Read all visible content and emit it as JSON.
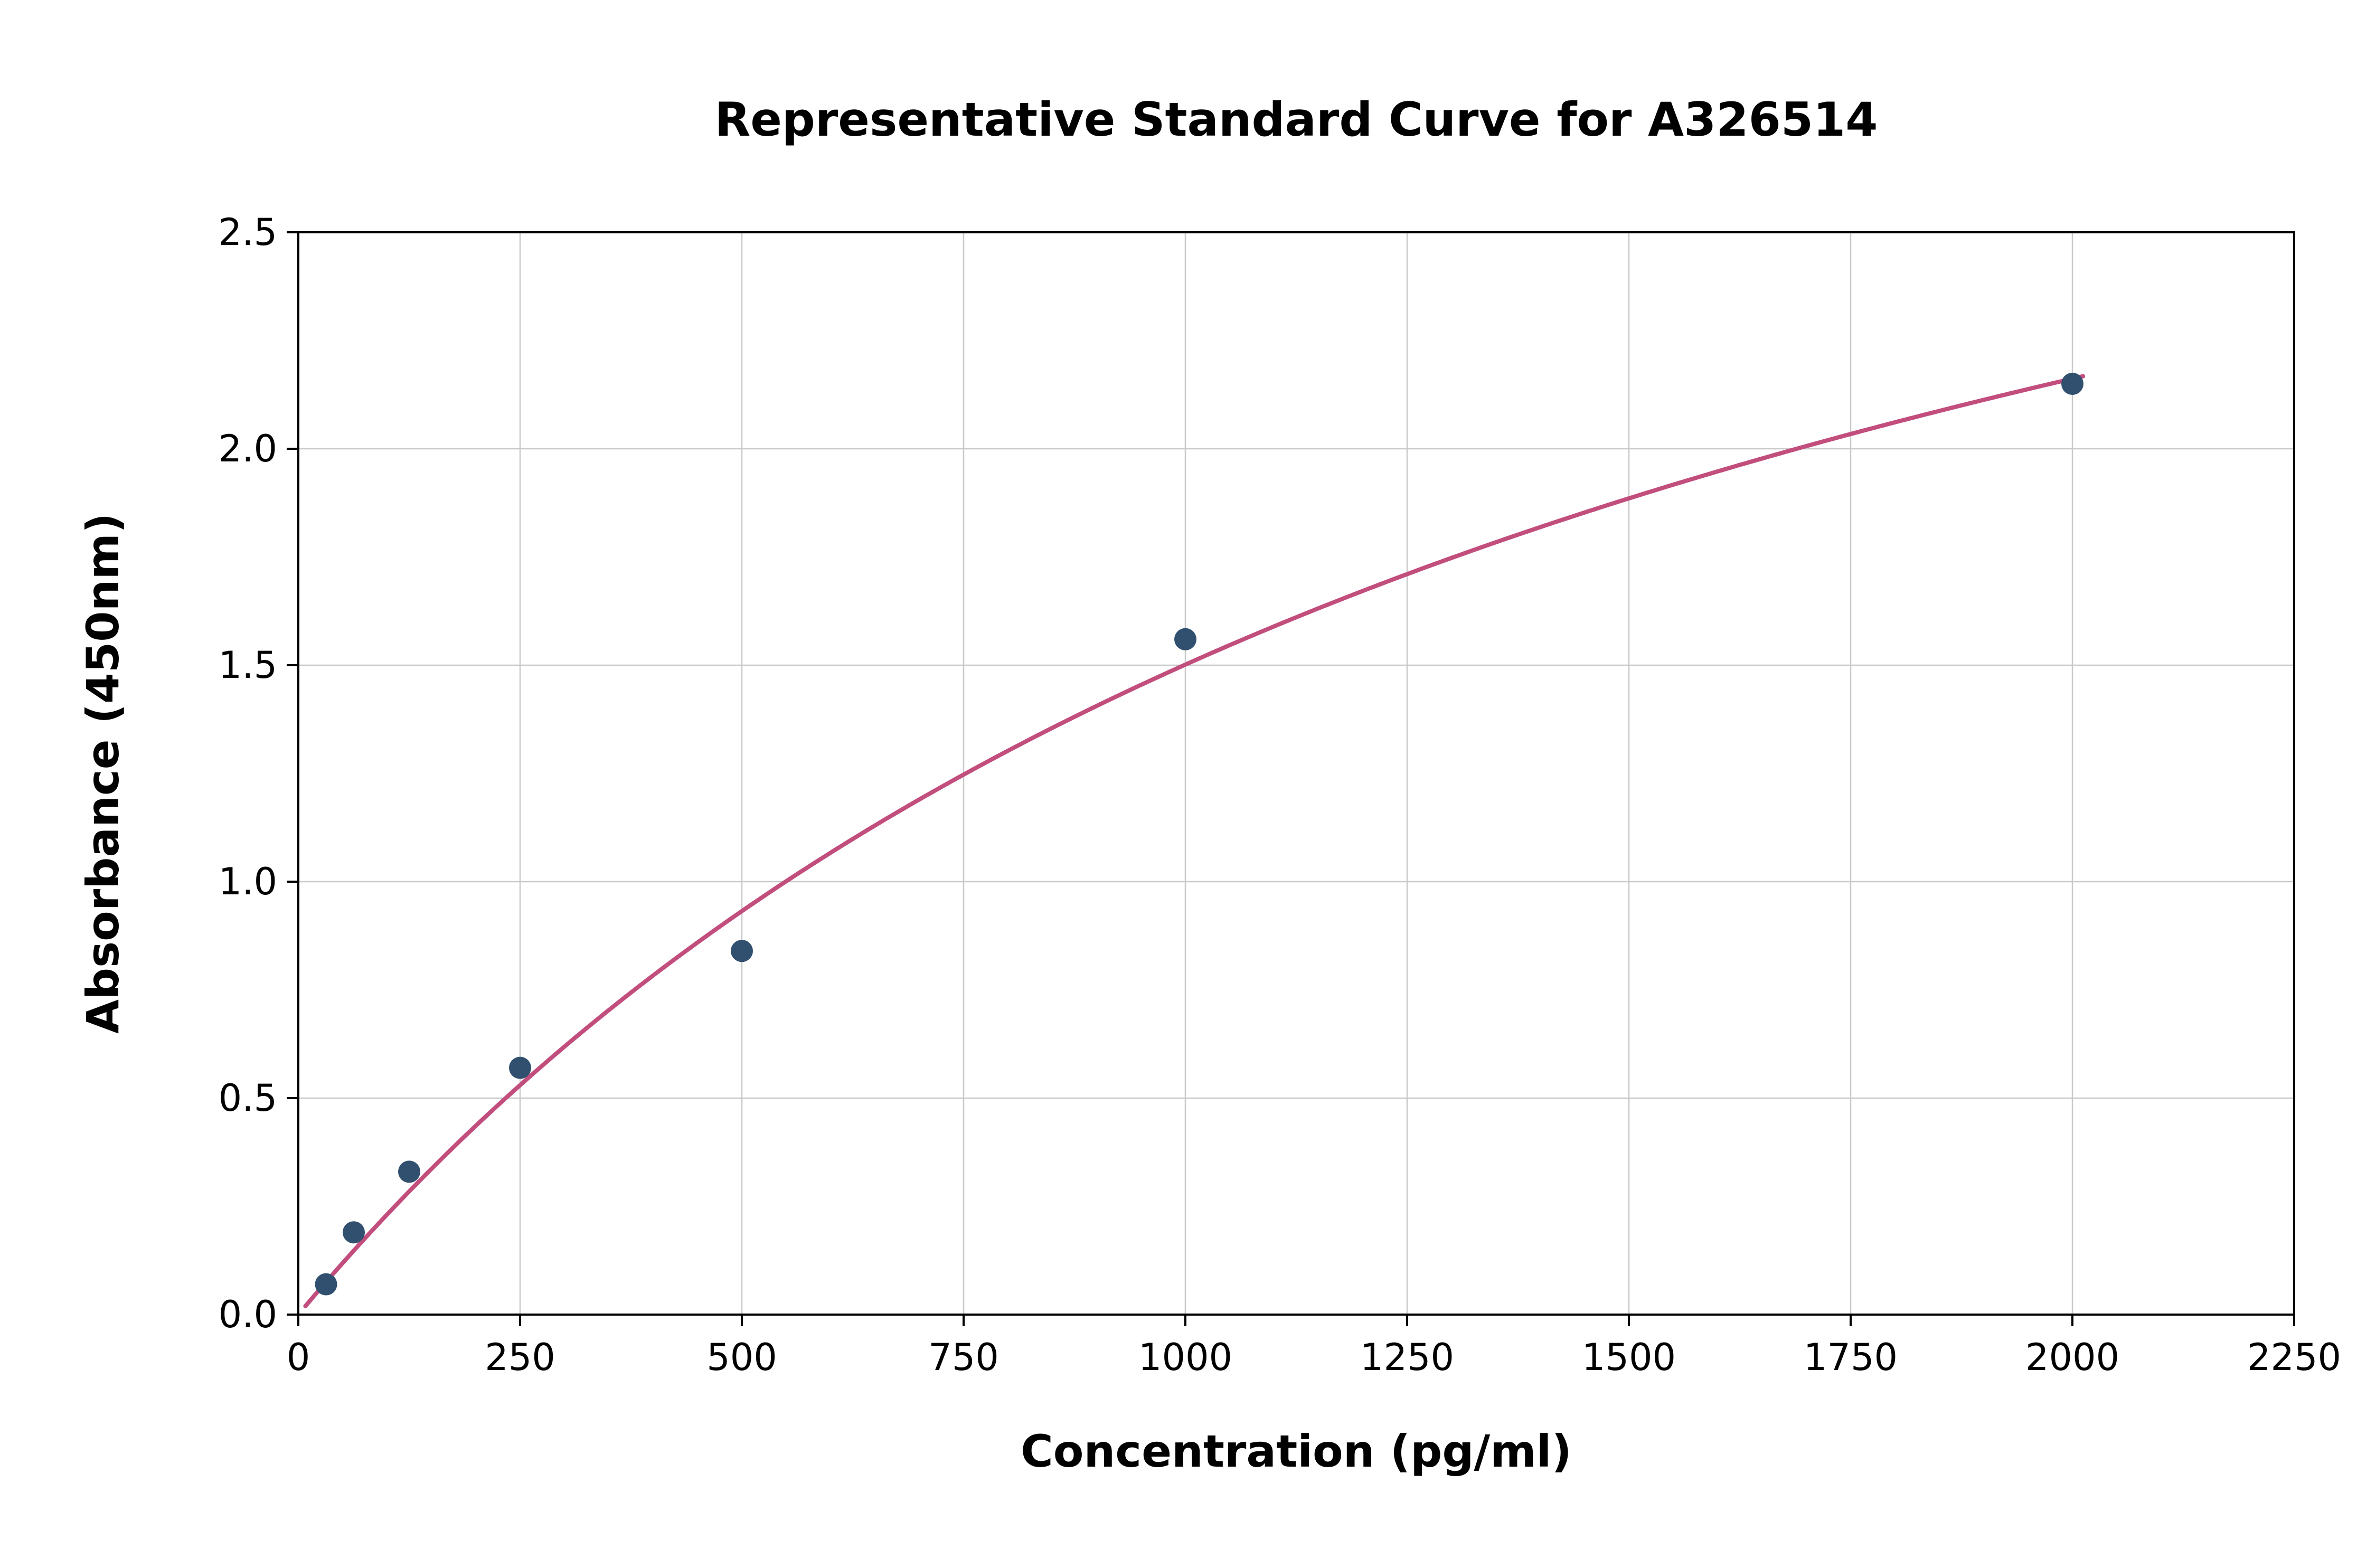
{
  "chart_data": {
    "type": "scatter",
    "title": "Representative Standard Curve for A326514",
    "xlabel": "Concentration (pg/ml)",
    "ylabel": "Absorbance (450nm)",
    "xlim": [
      0,
      2250
    ],
    "ylim": [
      0,
      2.5
    ],
    "x_ticks": [
      0,
      250,
      500,
      750,
      1000,
      1250,
      1500,
      1750,
      2000,
      2250
    ],
    "x_tick_labels": [
      "0",
      "250",
      "500",
      "750",
      "1000",
      "1250",
      "1500",
      "1750",
      "2000",
      "2250"
    ],
    "y_ticks": [
      0.0,
      0.5,
      1.0,
      1.5,
      2.0,
      2.5
    ],
    "y_tick_labels": [
      "0.0",
      "0.5",
      "1.0",
      "1.5",
      "2.0",
      "2.5"
    ],
    "grid": true,
    "legend_position": "none",
    "points": [
      {
        "x": 31.25,
        "y": 0.07
      },
      {
        "x": 62.5,
        "y": 0.19
      },
      {
        "x": 125,
        "y": 0.33
      },
      {
        "x": 250,
        "y": 0.57
      },
      {
        "x": 500,
        "y": 0.84
      },
      {
        "x": 1000,
        "y": 1.56
      },
      {
        "x": 2000,
        "y": 2.15
      }
    ],
    "fit": {
      "model": "y = a*x / (b + x)",
      "a": 3.86,
      "b": 1571,
      "x_start": 8,
      "x_end": 2012
    },
    "colors": {
      "point": "#31506f",
      "curve": "#c24e7d",
      "grid": "#c9c9c9",
      "axis": "#000000",
      "background": "#ffffff",
      "text": "#000000"
    }
  }
}
